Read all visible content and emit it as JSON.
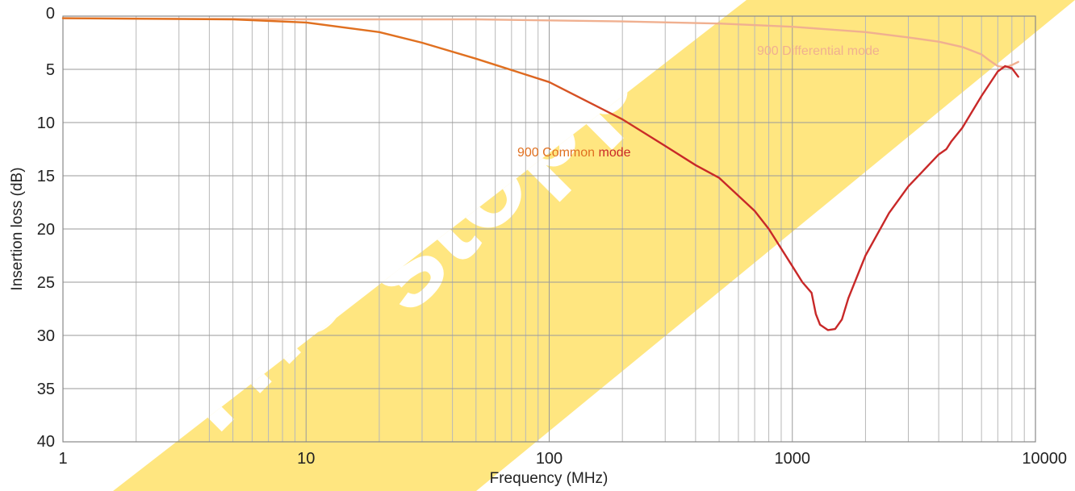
{
  "chart_data": {
    "type": "line",
    "xlabel": "Frequency (MHz)",
    "ylabel": "Insertion loss (dB)",
    "x_scale": "log",
    "xlim": [
      1,
      10000
    ],
    "ylim": [
      0,
      40
    ],
    "y_inverted": true,
    "x_ticks": [
      "1",
      "10",
      "100",
      "1000",
      "10000"
    ],
    "y_ticks": [
      "0",
      "5",
      "10",
      "15",
      "20",
      "25",
      "30",
      "35",
      "40"
    ],
    "grid": true,
    "series": [
      {
        "name": "900 Differential mode",
        "color": "#f0b090",
        "x": [
          1,
          10,
          50,
          100,
          200,
          500,
          1000,
          2000,
          3000,
          4000,
          5000,
          6000,
          6500,
          7000,
          7500,
          8000,
          8500
        ],
        "y": [
          0.2,
          0.3,
          0.3,
          0.4,
          0.5,
          0.7,
          1.0,
          1.5,
          2.0,
          2.4,
          2.9,
          3.6,
          4.2,
          4.7,
          4.8,
          4.6,
          4.3
        ]
      },
      {
        "name": "900 Common mode",
        "color": "#c82828",
        "x": [
          1,
          5,
          10,
          20,
          30,
          50,
          100,
          200,
          300,
          400,
          500,
          700,
          800,
          1000,
          1100,
          1200,
          1250,
          1300,
          1400,
          1500,
          1600,
          1700,
          2000,
          2500,
          3000,
          4000,
          4300,
          4500,
          5000,
          6000,
          7000,
          7500,
          8000,
          8500
        ],
        "y": [
          0.2,
          0.3,
          0.6,
          1.5,
          2.5,
          4.0,
          6.2,
          9.7,
          12.2,
          14.0,
          15.2,
          18.3,
          20.0,
          23.5,
          25.0,
          26.0,
          28.0,
          29.0,
          29.5,
          29.4,
          28.5,
          26.5,
          22.5,
          18.5,
          16.0,
          13.0,
          12.5,
          11.8,
          10.5,
          7.5,
          5.2,
          4.7,
          4.9,
          5.7
        ]
      }
    ],
    "series_label_colors": {
      "differential": "#f0b090",
      "common_start": "#e07020",
      "common_end": "#c82828"
    }
  },
  "watermark": {
    "line1": "The products w",
    "line2": "stopped",
    "color": "#ffe680"
  }
}
